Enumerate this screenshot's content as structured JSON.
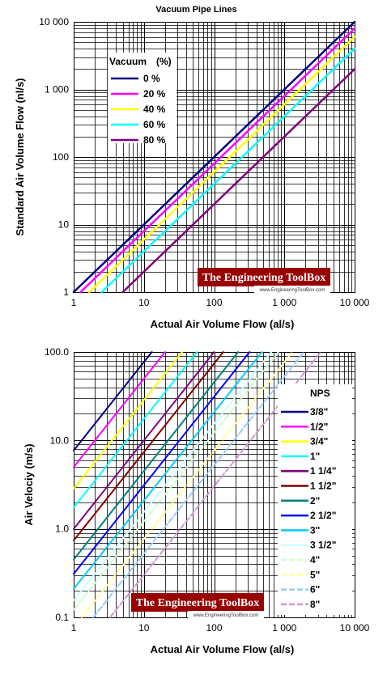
{
  "chart_data": [
    {
      "type": "line",
      "title": "Vacuum Pipe Lines",
      "xlabel": "Actual Air Volume Flow (al/s)",
      "ylabel": "Standard Air Volume Flow (nl/s)",
      "xscale": "log",
      "yscale": "log",
      "xlim": [
        1,
        10000
      ],
      "ylim": [
        1,
        10000
      ],
      "xticks": [
        "1",
        "10",
        "100",
        "1 000",
        "10 000"
      ],
      "yticks": [
        "1",
        "10",
        "100",
        "1 000",
        "10 000"
      ],
      "grid": true,
      "legend_title": "Vacuum",
      "legend_unit": "(%)",
      "legend_position": "top-left",
      "series": [
        {
          "name": "0 %",
          "color": "#000080",
          "x": [
            1,
            10000
          ],
          "y": [
            1,
            10000
          ]
        },
        {
          "name": "20 %",
          "color": "#ff00ff",
          "x": [
            1.25,
            10000
          ],
          "y": [
            1,
            8000
          ]
        },
        {
          "name": "40 %",
          "color": "#ffff00",
          "x": [
            1.67,
            10000
          ],
          "y": [
            1,
            6000
          ]
        },
        {
          "name": "60 %",
          "color": "#00ffff",
          "x": [
            2.5,
            10000
          ],
          "y": [
            1,
            4000
          ]
        },
        {
          "name": "80 %",
          "color": "#800080",
          "x": [
            5,
            10000
          ],
          "y": [
            1,
            2000
          ]
        }
      ]
    },
    {
      "type": "line",
      "title": "",
      "xlabel": "Actual Air Volume Flow (al/s)",
      "ylabel": "Air Velociy (m/s)",
      "xscale": "log",
      "yscale": "log",
      "xlim": [
        1,
        10000
      ],
      "ylim": [
        0.1,
        100
      ],
      "xticks": [
        "1",
        "10",
        "100",
        "1 000",
        "10 000"
      ],
      "yticks": [
        "0.1",
        "1.0",
        "10.0",
        "100.0"
      ],
      "grid": true,
      "legend_title": "NPS",
      "legend_position": "right",
      "series": [
        {
          "name": "3/8\"",
          "color": "#000080",
          "dash": "solid",
          "x": [
            1,
            13
          ],
          "y": [
            7.7,
            100
          ]
        },
        {
          "name": "1/2\"",
          "color": "#ff00ff",
          "dash": "solid",
          "x": [
            1,
            20
          ],
          "y": [
            5,
            100
          ]
        },
        {
          "name": "3/4\"",
          "color": "#ffff00",
          "dash": "solid",
          "x": [
            1,
            35
          ],
          "y": [
            2.85,
            100
          ]
        },
        {
          "name": "1\"",
          "color": "#00ffff",
          "dash": "solid",
          "x": [
            1,
            57
          ],
          "y": [
            1.75,
            100
          ]
        },
        {
          "name": "1 1/4\"",
          "color": "#800080",
          "dash": "solid",
          "x": [
            1,
            100
          ],
          "y": [
            1.0,
            100
          ]
        },
        {
          "name": "1 1/2\"",
          "color": "#800000",
          "dash": "solid",
          "x": [
            1,
            135
          ],
          "y": [
            0.74,
            100
          ]
        },
        {
          "name": "2\"",
          "color": "#008080",
          "dash": "solid",
          "x": [
            1,
            220
          ],
          "y": [
            0.45,
            100
          ]
        },
        {
          "name": "2 1/2\"",
          "color": "#0000ff",
          "dash": "solid",
          "x": [
            1,
            320
          ],
          "y": [
            0.31,
            100
          ]
        },
        {
          "name": "3\"",
          "color": "#00ccff",
          "dash": "solid",
          "x": [
            1,
            480
          ],
          "y": [
            0.21,
            100
          ]
        },
        {
          "name": "3 1/2\"",
          "color": "#ccffff",
          "dash": "solid",
          "x": [
            1,
            650
          ],
          "y": [
            0.155,
            100
          ]
        },
        {
          "name": "4\"",
          "color": "#ccffcc",
          "dash": "dashed",
          "x": [
            1,
            820
          ],
          "y": [
            0.122,
            100
          ]
        },
        {
          "name": "5\"",
          "color": "#ffff99",
          "dash": "dashed",
          "x": [
            1.3,
            1300
          ],
          "y": [
            0.1,
            100
          ]
        },
        {
          "name": "6\"",
          "color": "#99ccff",
          "dash": "dashed",
          "x": [
            1.9,
            1900
          ],
          "y": [
            0.1,
            100
          ]
        },
        {
          "name": "8\"",
          "color": "#cc99cc",
          "dash": "dashed",
          "x": [
            3.3,
            3300
          ],
          "y": [
            0.1,
            100
          ]
        }
      ]
    }
  ],
  "watermark": {
    "title": "The Engineering ToolBox",
    "url": "www.EngineeringToolBox.com"
  }
}
